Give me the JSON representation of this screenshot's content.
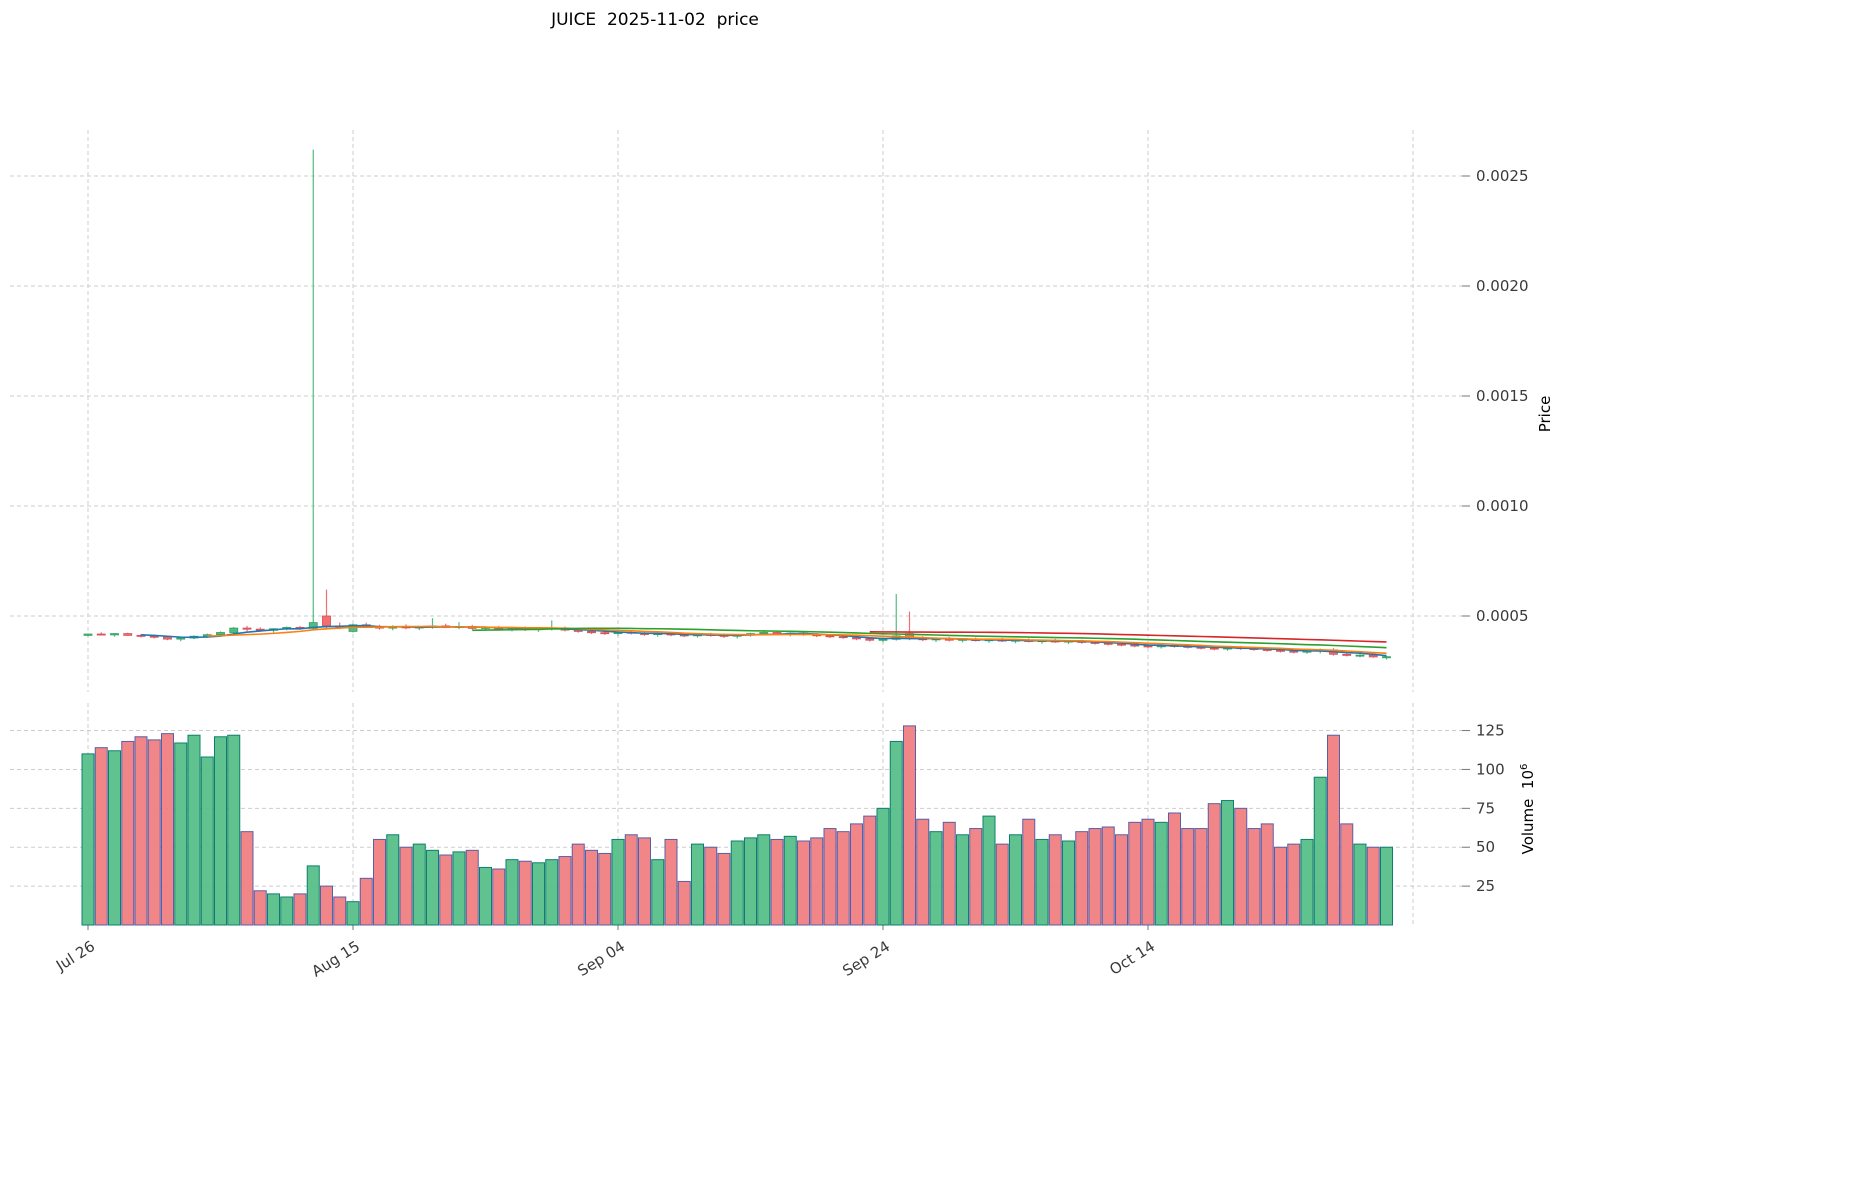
{
  "title": "JUICE  2025-11-02  price",
  "chart_data": {
    "type": "candlestick_with_volume",
    "symbol": "JUICE",
    "as_of_date": "2025-11-02",
    "price_axis": {
      "label": "Price",
      "ticks": [
        0.0005,
        0.001,
        0.0015,
        0.002,
        0.0025
      ]
    },
    "volume_axis": {
      "label": "Volume",
      "unit_base": "10",
      "unit_exp": "6",
      "ticks": [
        25,
        50,
        75,
        100,
        125
      ]
    },
    "x_ticks": [
      {
        "label": "Jul 26",
        "day": 0
      },
      {
        "label": "Aug 15",
        "day": 20
      },
      {
        "label": "Sep 04",
        "day": 40
      },
      {
        "label": "Sep 24",
        "day": 60
      },
      {
        "label": "Oct 14",
        "day": 80
      }
    ],
    "x_grid_days": [
      0,
      20,
      40,
      60,
      80,
      100
    ],
    "units": {
      "price_multiplier": 1e-06,
      "volume_unit": "millions"
    },
    "moving_averages": [
      {
        "window": 5,
        "color": "#1f77b4"
      },
      {
        "window": 10,
        "color": "#ff7f0e"
      },
      {
        "window": 30,
        "color": "#2ca02c"
      },
      {
        "window": 60,
        "color": "#d62728"
      }
    ],
    "colors": {
      "up": "#4fbd7c",
      "up_edge": "#2f9e5f",
      "down": "#ef6f72",
      "down_edge": "#d8494e",
      "vol_up": "#57c089",
      "vol_up_edge": "#0f7f6d",
      "vol_down": "#f08082",
      "vol_down_edge": "#5b5ea6",
      "grid": "#cdcdcd"
    },
    "ohlcv_format": [
      "date",
      "open_1e-6",
      "high_1e-6",
      "low_1e-6",
      "close_1e-6",
      "volume_1e6"
    ],
    "ohlcv": [
      [
        "07-26",
        412,
        420,
        408,
        418,
        110
      ],
      [
        "07-27",
        418,
        426,
        412,
        414,
        114
      ],
      [
        "07-28",
        414,
        422,
        406,
        420,
        112
      ],
      [
        "07-29",
        420,
        424,
        410,
        412,
        118
      ],
      [
        "07-30",
        412,
        418,
        402,
        408,
        121
      ],
      [
        "07-31",
        408,
        416,
        398,
        405,
        119
      ],
      [
        "08-01",
        405,
        410,
        390,
        395,
        123
      ],
      [
        "08-02",
        395,
        405,
        385,
        400,
        117
      ],
      [
        "08-03",
        400,
        412,
        395,
        408,
        122
      ],
      [
        "08-04",
        408,
        420,
        400,
        415,
        108
      ],
      [
        "08-05",
        415,
        430,
        408,
        425,
        121
      ],
      [
        "08-06",
        425,
        450,
        420,
        445,
        122
      ],
      [
        "08-07",
        445,
        455,
        430,
        440,
        60
      ],
      [
        "08-08",
        440,
        448,
        428,
        435,
        22
      ],
      [
        "08-09",
        435,
        445,
        425,
        442,
        20
      ],
      [
        "08-10",
        442,
        452,
        435,
        448,
        18
      ],
      [
        "08-11",
        448,
        455,
        438,
        444,
        20
      ],
      [
        "08-12",
        444,
        2620,
        438,
        470,
        38
      ],
      [
        "08-13",
        500,
        620,
        440,
        455,
        25
      ],
      [
        "08-14",
        455,
        470,
        440,
        448,
        18
      ],
      [
        "08-15",
        430,
        465,
        425,
        460,
        15
      ],
      [
        "08-16",
        460,
        470,
        445,
        450,
        30
      ],
      [
        "08-17",
        450,
        460,
        438,
        445,
        55
      ],
      [
        "08-18",
        445,
        458,
        435,
        452,
        58
      ],
      [
        "08-19",
        452,
        462,
        440,
        446,
        50
      ],
      [
        "08-20",
        446,
        455,
        436,
        450,
        52
      ],
      [
        "08-21",
        450,
        490,
        442,
        455,
        48
      ],
      [
        "08-22",
        455,
        465,
        445,
        448,
        45
      ],
      [
        "08-23",
        448,
        472,
        440,
        452,
        47
      ],
      [
        "08-24",
        452,
        460,
        438,
        444,
        48
      ],
      [
        "08-25",
        444,
        452,
        432,
        448,
        37
      ],
      [
        "08-26",
        448,
        455,
        435,
        440,
        36
      ],
      [
        "08-27",
        440,
        450,
        430,
        445,
        42
      ],
      [
        "08-28",
        445,
        452,
        432,
        438,
        41
      ],
      [
        "08-29",
        438,
        446,
        428,
        442,
        40
      ],
      [
        "08-30",
        442,
        480,
        434,
        446,
        42
      ],
      [
        "08-31",
        446,
        452,
        430,
        436,
        44
      ],
      [
        "09-01",
        436,
        444,
        424,
        430,
        52
      ],
      [
        "09-02",
        430,
        438,
        418,
        424,
        48
      ],
      [
        "09-03",
        424,
        434,
        414,
        420,
        46
      ],
      [
        "09-04",
        420,
        430,
        410,
        426,
        55
      ],
      [
        "09-05",
        426,
        434,
        416,
        422,
        58
      ],
      [
        "09-06",
        422,
        430,
        410,
        416,
        56
      ],
      [
        "09-07",
        416,
        426,
        406,
        420,
        42
      ],
      [
        "09-08",
        420,
        428,
        408,
        414,
        55
      ],
      [
        "09-09",
        414,
        422,
        404,
        410,
        28
      ],
      [
        "09-10",
        410,
        420,
        402,
        416,
        52
      ],
      [
        "09-11",
        416,
        424,
        406,
        412,
        50
      ],
      [
        "09-12",
        412,
        420,
        400,
        408,
        46
      ],
      [
        "09-13",
        408,
        418,
        398,
        414,
        54
      ],
      [
        "09-14",
        414,
        424,
        406,
        420,
        56
      ],
      [
        "09-15",
        420,
        430,
        412,
        425,
        58
      ],
      [
        "09-16",
        425,
        432,
        414,
        418,
        55
      ],
      [
        "09-17",
        418,
        426,
        408,
        422,
        57
      ],
      [
        "09-18",
        422,
        428,
        410,
        415,
        54
      ],
      [
        "09-19",
        415,
        422,
        404,
        410,
        56
      ],
      [
        "09-20",
        410,
        418,
        400,
        406,
        62
      ],
      [
        "09-21",
        406,
        414,
        396,
        402,
        60
      ],
      [
        "09-22",
        402,
        410,
        390,
        396,
        65
      ],
      [
        "09-23",
        396,
        404,
        384,
        390,
        70
      ],
      [
        "09-24",
        390,
        400,
        380,
        394,
        75
      ],
      [
        "09-25",
        394,
        600,
        388,
        410,
        118
      ],
      [
        "09-26",
        420,
        520,
        390,
        398,
        128
      ],
      [
        "09-27",
        398,
        408,
        386,
        392,
        68
      ],
      [
        "09-28",
        392,
        402,
        382,
        396,
        60
      ],
      [
        "09-29",
        396,
        404,
        384,
        390,
        66
      ],
      [
        "09-30",
        390,
        398,
        380,
        394,
        58
      ],
      [
        "10-01",
        394,
        402,
        384,
        388,
        62
      ],
      [
        "10-02",
        388,
        396,
        378,
        392,
        70
      ],
      [
        "10-03",
        392,
        400,
        382,
        386,
        52
      ],
      [
        "10-04",
        386,
        394,
        376,
        390,
        58
      ],
      [
        "10-05",
        390,
        398,
        380,
        384,
        68
      ],
      [
        "10-06",
        384,
        392,
        374,
        388,
        55
      ],
      [
        "10-07",
        388,
        396,
        378,
        382,
        58
      ],
      [
        "10-08",
        382,
        390,
        372,
        386,
        54
      ],
      [
        "10-09",
        386,
        392,
        374,
        380,
        60
      ],
      [
        "10-10",
        380,
        388,
        370,
        376,
        62
      ],
      [
        "10-11",
        376,
        384,
        366,
        372,
        63
      ],
      [
        "10-12",
        372,
        380,
        362,
        368,
        58
      ],
      [
        "10-13",
        368,
        376,
        358,
        364,
        66
      ],
      [
        "10-14",
        364,
        372,
        354,
        360,
        68
      ],
      [
        "10-15",
        360,
        370,
        352,
        366,
        66
      ],
      [
        "10-16",
        366,
        374,
        356,
        362,
        72
      ],
      [
        "10-17",
        362,
        370,
        352,
        358,
        62
      ],
      [
        "10-18",
        358,
        366,
        348,
        354,
        62
      ],
      [
        "10-19",
        354,
        362,
        344,
        350,
        78
      ],
      [
        "10-20",
        350,
        360,
        342,
        356,
        80
      ],
      [
        "10-21",
        356,
        364,
        346,
        352,
        75
      ],
      [
        "10-22",
        352,
        360,
        342,
        348,
        62
      ],
      [
        "10-23",
        348,
        356,
        338,
        344,
        65
      ],
      [
        "10-24",
        344,
        352,
        334,
        340,
        50
      ],
      [
        "10-25",
        340,
        348,
        330,
        336,
        52
      ],
      [
        "10-26",
        336,
        344,
        328,
        340,
        55
      ],
      [
        "10-27",
        340,
        352,
        330,
        346,
        95
      ],
      [
        "10-28",
        346,
        354,
        320,
        326,
        122
      ],
      [
        "10-29",
        326,
        334,
        316,
        321,
        65
      ],
      [
        "10-30",
        318,
        326,
        312,
        322,
        52
      ],
      [
        "10-31",
        322,
        328,
        310,
        314,
        50
      ],
      [
        "11-01",
        310,
        318,
        302,
        315,
        50
      ]
    ]
  }
}
